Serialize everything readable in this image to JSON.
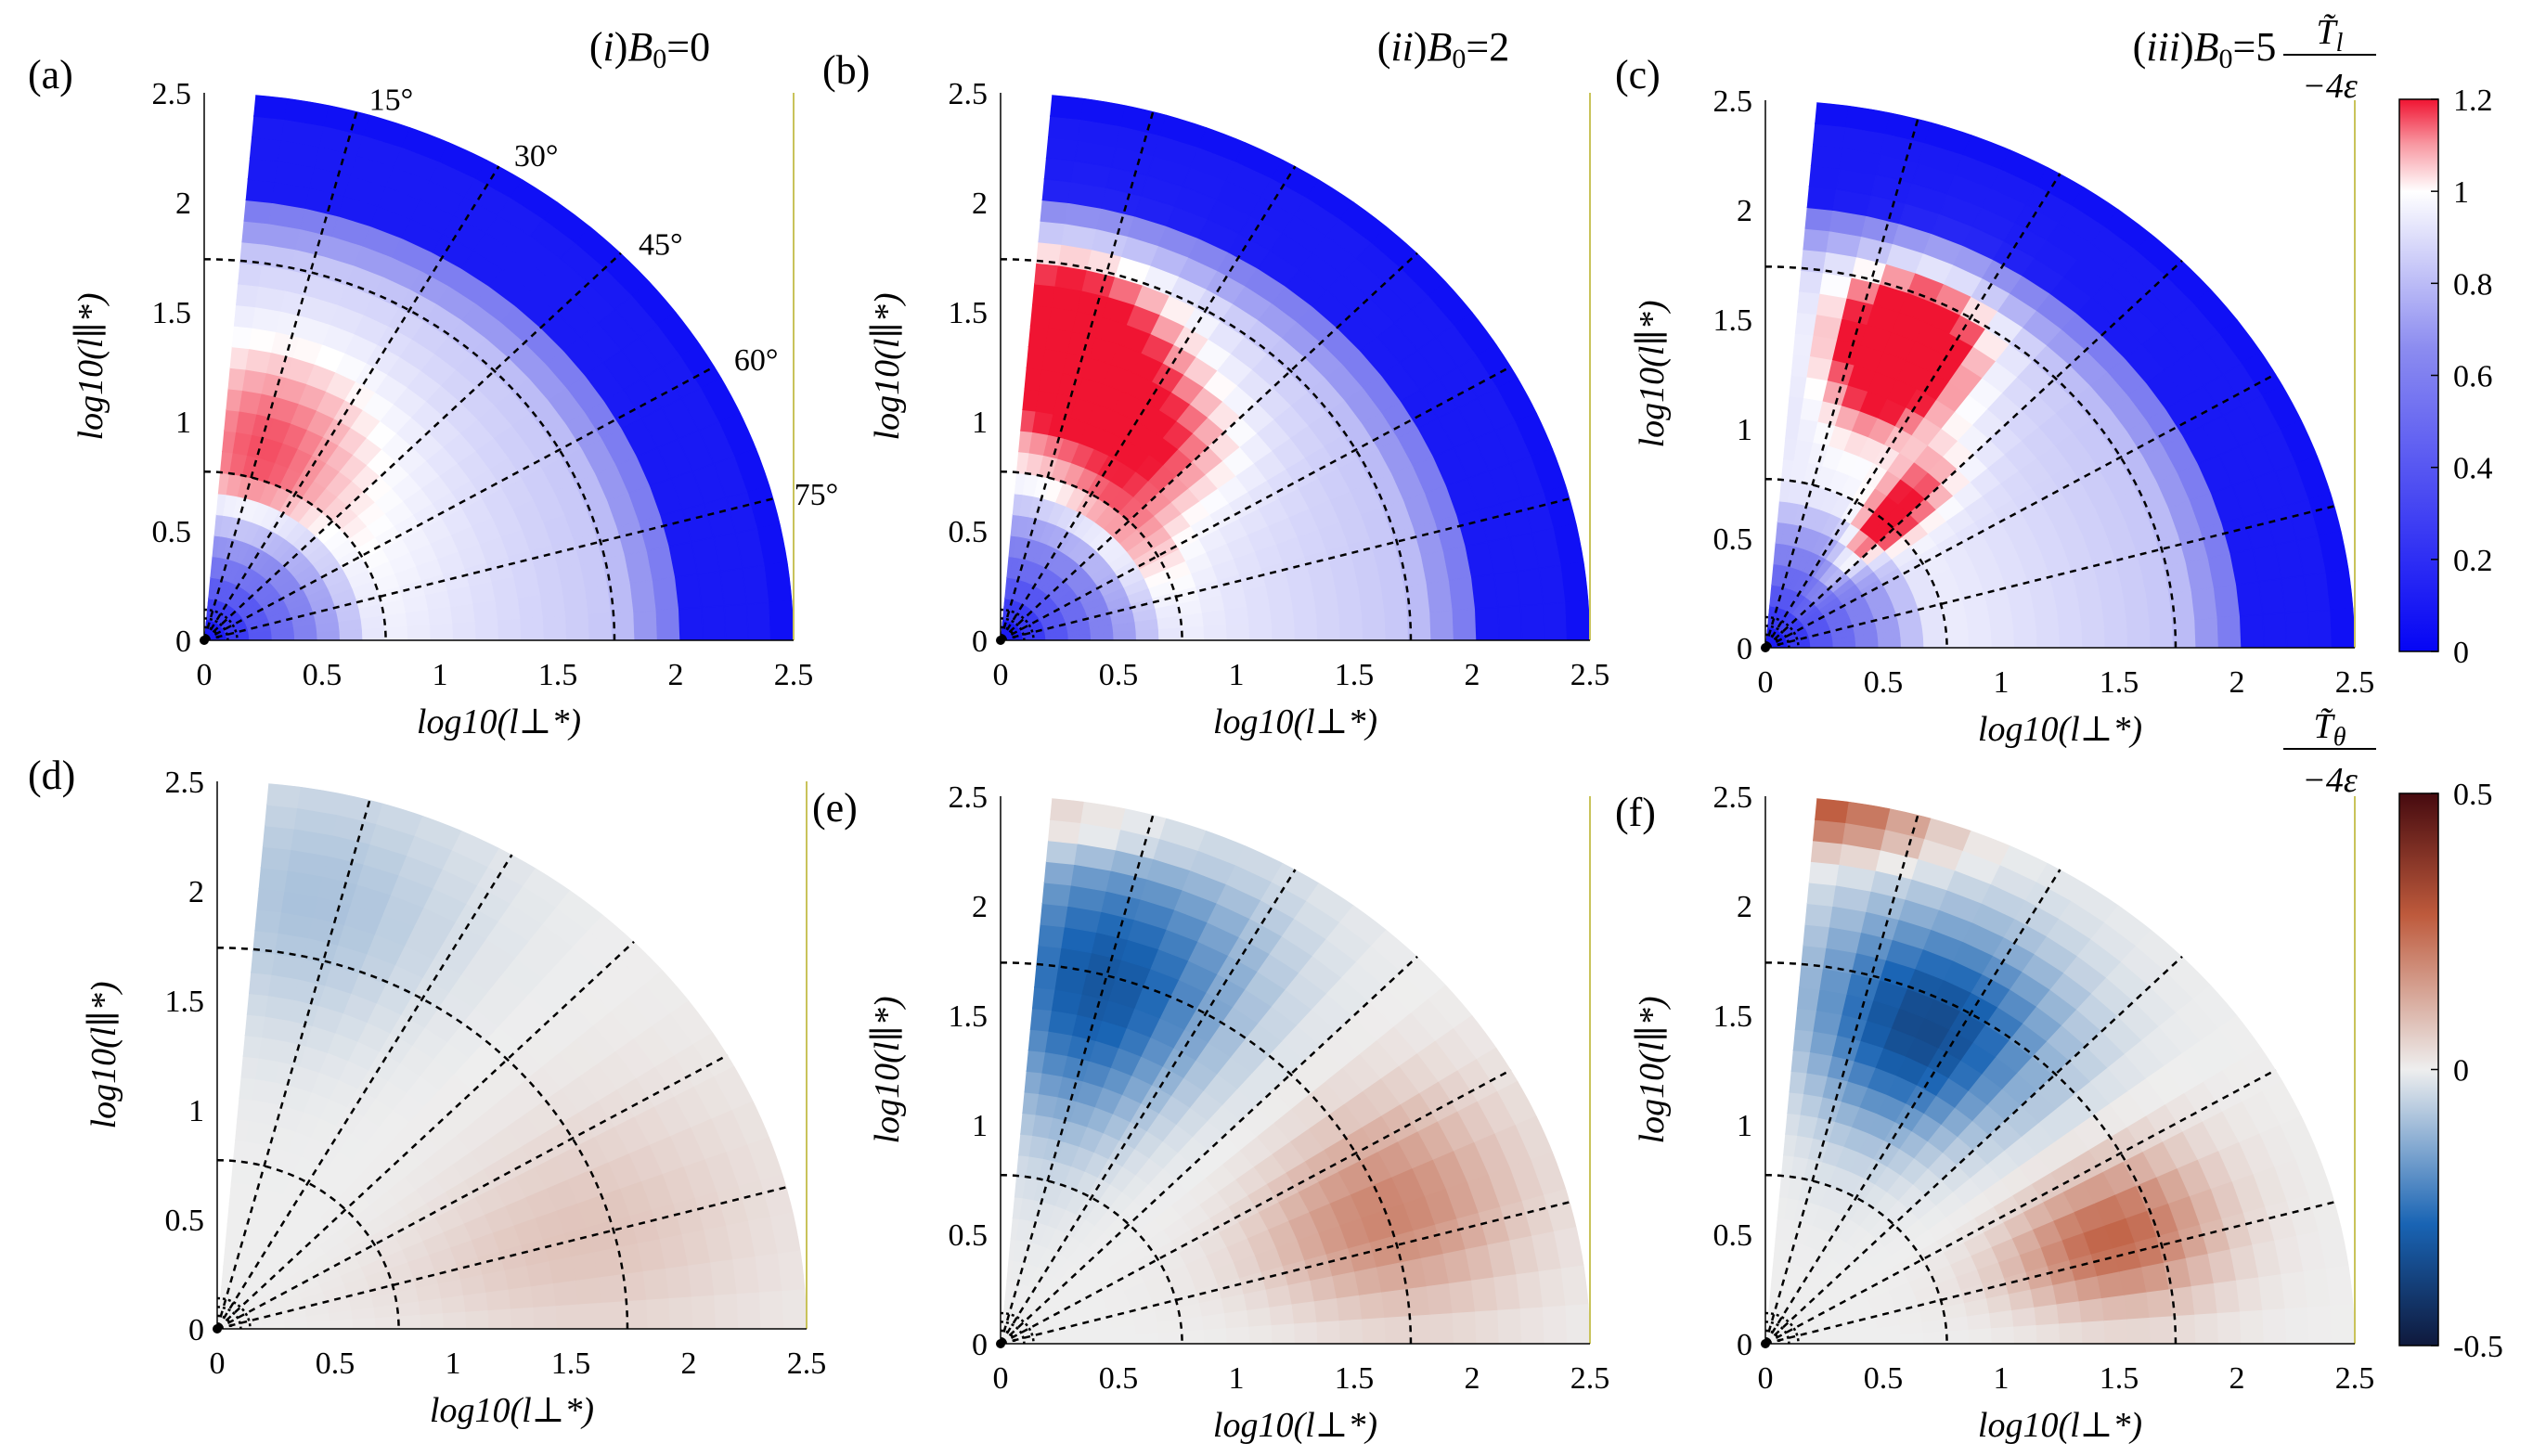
{
  "chart_data": [
    {
      "type": "heatmap",
      "panel": "(a)",
      "title": "(i)B0=0",
      "title_parts": {
        "num": "i",
        "var": "B",
        "sub": "0",
        "eq": "=0"
      },
      "xlabel": "log10(l⊥*)",
      "ylabel": "log10(l∥*)",
      "xlim": [
        0,
        2.5
      ],
      "ylim": [
        0,
        2.5
      ],
      "xticks": [
        "0",
        "0.5",
        "1",
        "1.5",
        "2",
        "2.5"
      ],
      "yticks": [
        "0",
        "0.5",
        "1",
        "1.5",
        "2",
        "2.5"
      ],
      "angle_labels": [
        "15°",
        "30°",
        "45°",
        "60°",
        "75°"
      ],
      "field": "T_l",
      "vmin": 0,
      "vmax": 1.2,
      "blobs": [
        {
          "r": 1.0,
          "th": 15,
          "amp": 0.22,
          "sr": 0.55,
          "sth": 25
        },
        {
          "r": 0.8,
          "th": 50,
          "amp": 0.05,
          "sr": 0.5,
          "sth": 30
        }
      ]
    },
    {
      "type": "heatmap",
      "panel": "(b)",
      "title": "(ii)B0=2",
      "title_parts": {
        "num": "ii",
        "var": "B",
        "sub": "0",
        "eq": "=2"
      },
      "xlabel": "log10(l⊥*)",
      "ylabel": "log10(l∥*)",
      "xlim": [
        0,
        2.5
      ],
      "ylim": [
        0,
        2.5
      ],
      "xticks": [
        "0",
        "0.5",
        "1",
        "1.5",
        "2",
        "2.5"
      ],
      "yticks": [
        "0",
        "0.5",
        "1",
        "1.5",
        "2",
        "2.5"
      ],
      "field": "T_l",
      "vmin": 0,
      "vmax": 1.2,
      "blobs": [
        {
          "r": 1.4,
          "th": 10,
          "amp": 0.55,
          "sr": 0.42,
          "sth": 18
        },
        {
          "r": 1.1,
          "th": 35,
          "amp": 0.28,
          "sr": 0.4,
          "sth": 18
        },
        {
          "r": 0.7,
          "th": 55,
          "amp": 0.12,
          "sr": 0.2,
          "sth": 20
        }
      ]
    },
    {
      "type": "heatmap",
      "panel": "(c)",
      "title": "(iii)B0=5",
      "title_parts": {
        "num": "iii",
        "var": "B",
        "sub": "0",
        "eq": "=5"
      },
      "xlabel": "log10(l⊥*)",
      "ylabel": "log10(l∥*)",
      "xlim": [
        0,
        2.5
      ],
      "ylim": [
        0,
        2.5
      ],
      "xticks": [
        "0",
        "0.5",
        "1",
        "1.5",
        "2",
        "2.5"
      ],
      "yticks": [
        "0",
        "0.5",
        "1",
        "1.5",
        "2",
        "2.5"
      ],
      "field": "T_l",
      "vmin": 0,
      "vmax": 1.2,
      "blobs": [
        {
          "r": 1.5,
          "th": 23,
          "amp": 0.6,
          "sr": 0.38,
          "sth": 12
        },
        {
          "r": 0.75,
          "th": 42,
          "amp": 0.35,
          "sr": 0.4,
          "sth": 8
        }
      ]
    },
    {
      "type": "heatmap",
      "panel": "(d)",
      "xlabel": "log10(l⊥*)",
      "ylabel": "log10(l∥*)",
      "xlim": [
        0,
        2.5
      ],
      "ylim": [
        0,
        2.5
      ],
      "xticks": [
        "0",
        "0.5",
        "1",
        "1.5",
        "2",
        "2.5"
      ],
      "yticks": [
        "0",
        "0.5",
        "1",
        "1.5",
        "2",
        "2.5"
      ],
      "field": "T_theta",
      "vmin": -0.5,
      "vmax": 0.5,
      "blobs": [
        {
          "r": 2.0,
          "th": 12,
          "amp": -0.09,
          "sr": 0.6,
          "sth": 18
        },
        {
          "r": 1.6,
          "th": 75,
          "amp": 0.08,
          "sr": 0.8,
          "sth": 18
        }
      ]
    },
    {
      "type": "heatmap",
      "panel": "(e)",
      "xlabel": "log10(l⊥*)",
      "ylabel": "log10(l∥*)",
      "xlim": [
        0,
        2.5
      ],
      "ylim": [
        0,
        2.5
      ],
      "xticks": [
        "0",
        "0.5",
        "1",
        "1.5",
        "2",
        "2.5"
      ],
      "yticks": [
        "0",
        "0.5",
        "1",
        "1.5",
        "2",
        "2.5"
      ],
      "field": "T_theta",
      "vmin": -0.5,
      "vmax": 0.5,
      "blobs": [
        {
          "r": 1.7,
          "th": 15,
          "amp": -0.32,
          "sr": 0.65,
          "sth": 18
        },
        {
          "r": 1.75,
          "th": 70,
          "amp": 0.2,
          "sr": 0.55,
          "sth": 15
        },
        {
          "r": 2.4,
          "th": 5,
          "amp": 0.12,
          "sr": 0.15,
          "sth": 15
        }
      ]
    },
    {
      "type": "heatmap",
      "panel": "(f)",
      "xlabel": "log10(l⊥*)",
      "ylabel": "log10(l∥*)",
      "xlim": [
        0,
        2.5
      ],
      "ylim": [
        0,
        2.5
      ],
      "xticks": [
        "0",
        "0.5",
        "1",
        "1.5",
        "2",
        "2.5"
      ],
      "yticks": [
        "0",
        "0.5",
        "1",
        "1.5",
        "2",
        "2.5"
      ],
      "field": "T_theta",
      "vmin": -0.5,
      "vmax": 0.5,
      "blobs": [
        {
          "r": 1.6,
          "th": 25,
          "amp": -0.36,
          "sr": 0.5,
          "sth": 18
        },
        {
          "r": 1.55,
          "th": 72,
          "amp": 0.26,
          "sr": 0.45,
          "sth": 12
        },
        {
          "r": 2.45,
          "th": 5,
          "amp": 0.28,
          "sr": 0.18,
          "sth": 12
        }
      ]
    }
  ],
  "colorbars": [
    {
      "field": "T_l",
      "label": "T̃l / −4ε",
      "label_num": "T̃",
      "label_num_sub": "l",
      "label_den": "−4ε",
      "ticks": [
        "0",
        "0.2",
        "0.4",
        "0.6",
        "0.8",
        "1",
        "1.2"
      ],
      "range": [
        0,
        1.2
      ]
    },
    {
      "field": "T_theta",
      "label": "T̃θ / −4ε",
      "label_num": "T̃",
      "label_num_sub": "θ",
      "label_den": "−4ε",
      "ticks": [
        "-0.5",
        "0",
        "0.5"
      ],
      "range": [
        -0.5,
        0.5
      ]
    }
  ],
  "colors": {
    "axis": "#000000",
    "guide": "#000000",
    "edge_line": "#c9c35a"
  }
}
